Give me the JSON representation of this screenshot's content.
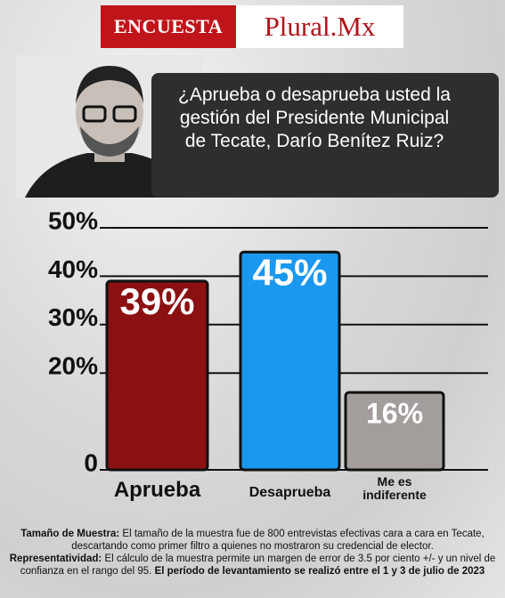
{
  "header": {
    "left": "ENCUESTA",
    "right": "Plural.Mx"
  },
  "question": "¿Aprueba o desaprueba usted la gestión del Presidente Municipal de Tecate, Darío Benítez Ruiz?",
  "chart_data": {
    "type": "bar",
    "categories": [
      "Aprueba",
      "Desaprueba",
      "Me es indiferente"
    ],
    "values": [
      39,
      45,
      16
    ],
    "value_labels": [
      "39%",
      "45%",
      "16%"
    ],
    "colors": [
      "#8b1012",
      "#1a98f0",
      "#a39d9c"
    ],
    "ylim": [
      0,
      50
    ],
    "yticks": [
      0,
      {
        "value": 20,
        "label": "20%"
      },
      {
        "value": 30,
        "label": "30%"
      },
      {
        "value": 40,
        "label": "40%"
      },
      {
        "value": 50,
        "label": "50%"
      }
    ],
    "grid": true
  },
  "footnote": {
    "label1": "Tamaño de Muestra:",
    "text1": "El tamaño de la muestra fue de 800 entrevistas efectivas cara a cara en Tecate, descartando como primer filtro a quienes no mostraron su credencial de elector.",
    "label2": "Representatividad:",
    "text2": "El cálculo de la muestra permite un margen de error de 3.5 por ciento +/- y un nivel de confianza en el rango del 95.",
    "text3": "El período de levantamiento se realizó entre el 1 y 3 de julio de 2023"
  }
}
